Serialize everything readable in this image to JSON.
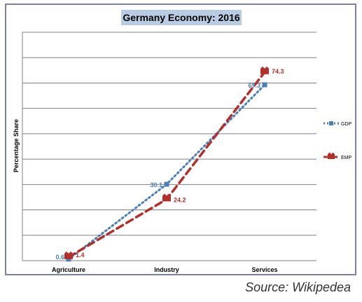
{
  "chart_data": {
    "type": "line",
    "title": "Germany Economy: 2016",
    "xlabel": "",
    "ylabel": "Percentage Share",
    "categories": [
      "Agriculture",
      "Industry",
      "Services"
    ],
    "ylim": [
      0,
      90
    ],
    "grid": true,
    "legend": "right",
    "series": [
      {
        "name": "GDP",
        "values": [
          0.6,
          30.1,
          69.3
        ],
        "labels": [
          "0.6",
          "30.1",
          "69.3"
        ],
        "color": "#4a7ebb",
        "style": "dotted"
      },
      {
        "name": "EMP",
        "values": [
          1.4,
          24.2,
          74.3
        ],
        "labels": [
          "1.4",
          "24.2",
          "74.3"
        ],
        "color": "#b3302a",
        "style": "dashed"
      }
    ]
  },
  "source": "Source:  Wikipedea",
  "colors": {
    "title_bg": "#b8cce4",
    "border": "#7b7fb5",
    "grid": "#808080"
  }
}
